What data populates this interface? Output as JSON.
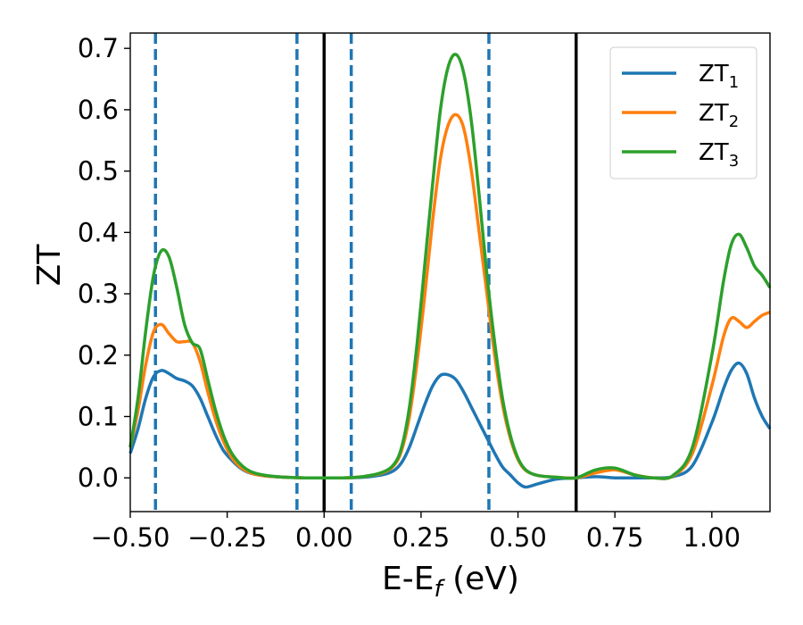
{
  "chart_data": {
    "type": "line",
    "xlabel": "E-E",
    "xlabel_sub": "f",
    "xlabel_unit": " (eV)",
    "ylabel": "ZT",
    "xlim": [
      -0.5,
      1.15
    ],
    "ylim": [
      -0.055,
      0.725
    ],
    "xticks": [
      -0.5,
      -0.25,
      0.0,
      0.25,
      0.5,
      0.75,
      1.0
    ],
    "xtick_labels": [
      "−0.50",
      "−0.25",
      "0.00",
      "0.25",
      "0.50",
      "0.75",
      "1.00"
    ],
    "yticks": [
      0.0,
      0.1,
      0.2,
      0.3,
      0.4,
      0.5,
      0.6,
      0.7
    ],
    "ytick_labels": [
      "0.0",
      "0.1",
      "0.2",
      "0.3",
      "0.4",
      "0.5",
      "0.6",
      "0.7"
    ],
    "grid": false,
    "legend_position": "top-right",
    "vlines_solid": [
      0.0,
      0.65
    ],
    "vlines_dashed": [
      -0.435,
      -0.07,
      0.07,
      0.425
    ],
    "series": [
      {
        "name": "ZT",
        "name_sub": "1",
        "color": "#1f77b4",
        "x": [
          -0.5,
          -0.48,
          -0.46,
          -0.44,
          -0.42,
          -0.4,
          -0.38,
          -0.36,
          -0.34,
          -0.32,
          -0.3,
          -0.28,
          -0.26,
          -0.24,
          -0.22,
          -0.2,
          -0.18,
          -0.15,
          -0.1,
          -0.05,
          0.0,
          0.05,
          0.1,
          0.15,
          0.18,
          0.2,
          0.22,
          0.24,
          0.26,
          0.28,
          0.3,
          0.32,
          0.34,
          0.36,
          0.38,
          0.4,
          0.42,
          0.44,
          0.46,
          0.48,
          0.5,
          0.52,
          0.55,
          0.6,
          0.65,
          0.7,
          0.75,
          0.8,
          0.85,
          0.9,
          0.95,
          1.0,
          1.03,
          1.05,
          1.07,
          1.09,
          1.11,
          1.13,
          1.15
        ],
        "y": [
          0.04,
          0.08,
          0.13,
          0.165,
          0.175,
          0.17,
          0.162,
          0.158,
          0.15,
          0.13,
          0.1,
          0.07,
          0.045,
          0.03,
          0.018,
          0.01,
          0.006,
          0.003,
          0.001,
          0.0,
          0.0,
          0.0,
          0.001,
          0.005,
          0.012,
          0.025,
          0.05,
          0.085,
          0.12,
          0.15,
          0.167,
          0.168,
          0.16,
          0.14,
          0.115,
          0.09,
          0.065,
          0.04,
          0.018,
          0.005,
          -0.008,
          -0.015,
          -0.01,
          -0.002,
          0.0,
          0.002,
          0.0,
          0.0,
          0.0,
          0.002,
          0.02,
          0.09,
          0.145,
          0.175,
          0.187,
          0.17,
          0.13,
          0.1,
          0.08
        ]
      },
      {
        "name": "ZT",
        "name_sub": "2",
        "color": "#ff7f0e",
        "x": [
          -0.5,
          -0.48,
          -0.46,
          -0.44,
          -0.42,
          -0.4,
          -0.38,
          -0.36,
          -0.34,
          -0.32,
          -0.3,
          -0.28,
          -0.26,
          -0.24,
          -0.22,
          -0.2,
          -0.18,
          -0.15,
          -0.1,
          -0.05,
          0.0,
          0.05,
          0.1,
          0.15,
          0.18,
          0.2,
          0.22,
          0.24,
          0.26,
          0.28,
          0.3,
          0.32,
          0.34,
          0.36,
          0.38,
          0.4,
          0.42,
          0.44,
          0.46,
          0.48,
          0.5,
          0.52,
          0.55,
          0.6,
          0.65,
          0.7,
          0.75,
          0.8,
          0.85,
          0.9,
          0.95,
          1.0,
          1.03,
          1.05,
          1.07,
          1.09,
          1.11,
          1.13,
          1.15
        ],
        "y": [
          0.05,
          0.11,
          0.185,
          0.238,
          0.25,
          0.235,
          0.222,
          0.222,
          0.22,
          0.19,
          0.14,
          0.095,
          0.06,
          0.035,
          0.02,
          0.011,
          0.006,
          0.003,
          0.001,
          0.0,
          0.0,
          0.0,
          0.002,
          0.008,
          0.02,
          0.045,
          0.1,
          0.19,
          0.3,
          0.42,
          0.52,
          0.575,
          0.592,
          0.57,
          0.5,
          0.4,
          0.3,
          0.2,
          0.12,
          0.065,
          0.03,
          0.012,
          0.004,
          0.001,
          0.0,
          0.008,
          0.013,
          0.005,
          0.0,
          0.003,
          0.04,
          0.15,
          0.23,
          0.26,
          0.255,
          0.245,
          0.255,
          0.265,
          0.27
        ]
      },
      {
        "name": "ZT",
        "name_sub": "3",
        "color": "#2ca02c",
        "x": [
          -0.5,
          -0.48,
          -0.46,
          -0.44,
          -0.42,
          -0.4,
          -0.38,
          -0.36,
          -0.34,
          -0.32,
          -0.3,
          -0.28,
          -0.26,
          -0.24,
          -0.22,
          -0.2,
          -0.18,
          -0.15,
          -0.1,
          -0.05,
          0.0,
          0.05,
          0.1,
          0.15,
          0.18,
          0.2,
          0.22,
          0.24,
          0.26,
          0.28,
          0.3,
          0.32,
          0.34,
          0.36,
          0.38,
          0.4,
          0.42,
          0.44,
          0.46,
          0.48,
          0.5,
          0.52,
          0.55,
          0.6,
          0.65,
          0.7,
          0.75,
          0.8,
          0.85,
          0.9,
          0.95,
          1.0,
          1.03,
          1.05,
          1.07,
          1.09,
          1.11,
          1.13,
          1.15
        ],
        "y": [
          0.05,
          0.13,
          0.24,
          0.33,
          0.37,
          0.36,
          0.31,
          0.25,
          0.22,
          0.21,
          0.16,
          0.11,
          0.07,
          0.042,
          0.025,
          0.014,
          0.008,
          0.004,
          0.001,
          0.0,
          0.0,
          0.0,
          0.002,
          0.009,
          0.022,
          0.05,
          0.115,
          0.22,
          0.35,
          0.48,
          0.6,
          0.67,
          0.69,
          0.66,
          0.58,
          0.46,
          0.33,
          0.22,
          0.13,
          0.07,
          0.032,
          0.013,
          0.004,
          0.001,
          0.0,
          0.013,
          0.016,
          0.005,
          0.0,
          0.004,
          0.05,
          0.2,
          0.32,
          0.38,
          0.397,
          0.375,
          0.345,
          0.33,
          0.31
        ]
      }
    ]
  }
}
